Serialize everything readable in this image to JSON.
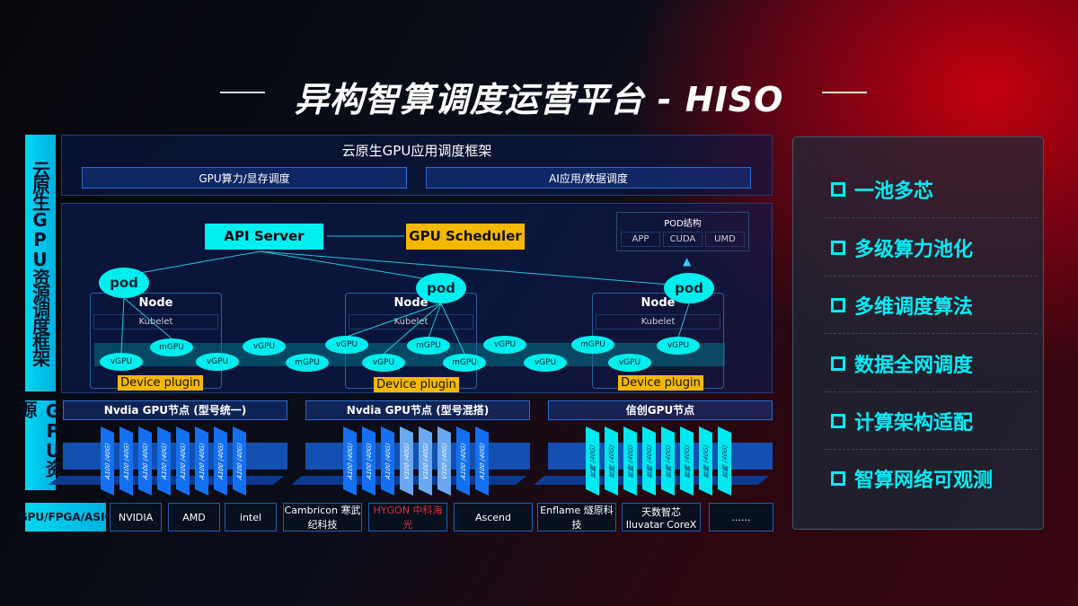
{
  "title": "异构智算调度运营平台 - HISO",
  "left_labels": {
    "top": "云原生GPU资源调度框架",
    "bottom": "GPU资源",
    "vendor": "GPU/FPGA/ASIC"
  },
  "framework": {
    "title": "云原生GPU应用调度框架",
    "bar1": "GPU算力/显存调度",
    "bar2": "AI应用/数据调度"
  },
  "api_server": "API Server",
  "gpu_scheduler": "GPU Scheduler",
  "pod_struct": {
    "title": "POD结构",
    "items": [
      "APP",
      "CUDA",
      "UMD"
    ]
  },
  "node_label": "Node",
  "kubelet_label": "Kubelet",
  "device_plugin": "Device plugin",
  "pod_label": "pod",
  "gpu_units": [
    "vGPU",
    "mGPU",
    "vGPU",
    "vGPU",
    "mGPU",
    "vGPU",
    "vGPU",
    "mGPU",
    "mGPU",
    "vGPU",
    "vGPU",
    "mGPU",
    "vGPU",
    "vGPU"
  ],
  "gpu_nodes": [
    {
      "title": "Nvdia GPU节点 (型号统一)",
      "cards": [
        "A100 (40G)",
        "A100 (40G)",
        "A100 (40G)",
        "A100 (40G)",
        "A100 (40G)",
        "A100 (40G)",
        "A100 (40G)",
        "A100 (40G)"
      ]
    },
    {
      "title": "Nvdia GPU节点 (型号混搭)",
      "cards": [
        "A100 (40G)",
        "A100 (40G)",
        "A100 (40G)",
        "V100 (40G)",
        "V100 (40G)",
        "V100 (40G)",
        "A100 (40G)",
        "A100 (40G)"
      ]
    },
    {
      "title": "信创GPU节点",
      "cards": [
        "昇腾 (40G)",
        "昇腾 (40G)",
        "昇腾 (40G)",
        "昇腾 (40G)",
        "昇腾 (40G)",
        "昇腾 (40G)",
        "昇腾 (40G)",
        "昇腾 (40G)"
      ]
    }
  ],
  "vendors": [
    "NVIDIA",
    "AMD",
    "intel",
    "Cambricon 寒武纪科技",
    "HYGON 中科海光",
    "Ascend",
    "Enflame 燧原科技",
    "天数智芯 Iluvatar CoreX",
    "......"
  ],
  "features": [
    "一池多芯",
    "多级算力池化",
    "多维调度算法",
    "数据全网调度",
    "计算架构适配",
    "智算网络可观测"
  ],
  "colors": {
    "cyan": "#00eef5",
    "yellow": "#f5b800",
    "blue": "#1470f0",
    "red": "#c4000e"
  }
}
